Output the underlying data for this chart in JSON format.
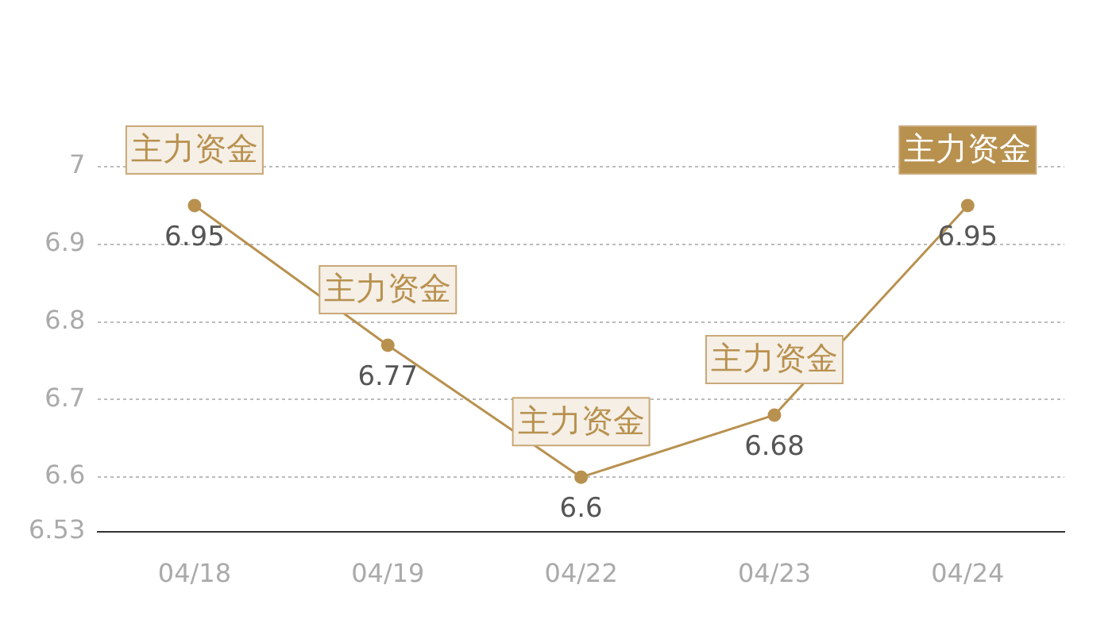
{
  "chart_data": {
    "type": "line",
    "categories": [
      "04/18",
      "04/19",
      "04/22",
      "04/23",
      "04/24"
    ],
    "series": [
      {
        "color": "#b8914f",
        "values": [
          6.95,
          6.77,
          6.6,
          6.68,
          6.95
        ]
      }
    ],
    "ylim": [
      6.53,
      7
    ],
    "yticks": [
      6.53,
      6.6,
      6.7,
      6.8,
      6.9,
      7
    ],
    "grid": "y",
    "marker": "circle",
    "line_style": "solid",
    "data_labels": true,
    "annotations": [
      {
        "text": "主力资金",
        "x": "04/18",
        "y": 6.95
      },
      {
        "text": "主力资金",
        "x": "04/19",
        "y": 6.77
      },
      {
        "text": "主力资金",
        "x": "04/22",
        "y": 6.6
      },
      {
        "text": "主力资金",
        "x": "04/23",
        "y": 6.68
      },
      {
        "text": "主力资金",
        "x": "04/24",
        "y": 6.95
      }
    ]
  }
}
